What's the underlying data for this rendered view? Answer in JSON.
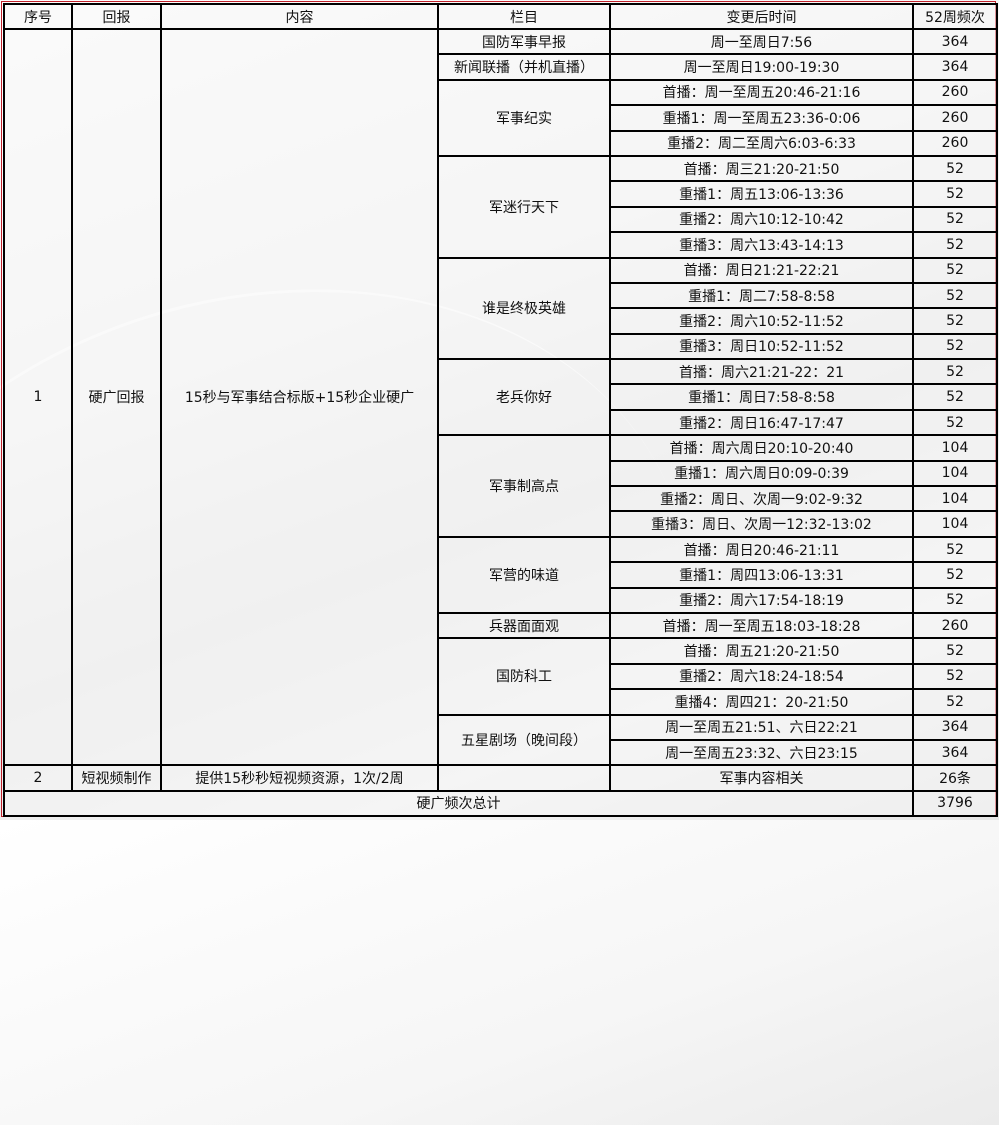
{
  "headers": [
    "序号",
    "回报",
    "内容",
    "栏目",
    "变更后时间",
    "52周频次"
  ],
  "section1": {
    "index": "1",
    "return": "硬广回报",
    "content": "15秒与军事结合标版+15秒企业硬广",
    "programs": [
      {
        "name": "国防军事早报",
        "slots": [
          {
            "time": "周一至周日7:56",
            "freq": "364"
          }
        ]
      },
      {
        "name": "新闻联播（并机直播）",
        "slots": [
          {
            "time": "周一至周日19:00-19:30",
            "freq": "364"
          }
        ]
      },
      {
        "name": "军事纪实",
        "slots": [
          {
            "time": "首播：周一至周五20:46-21:16",
            "freq": "260"
          },
          {
            "time": "重播1：周一至周五23:36-0:06",
            "freq": "260"
          },
          {
            "time": "重播2：周二至周六6:03-6:33",
            "freq": "260"
          }
        ]
      },
      {
        "name": "军迷行天下",
        "slots": [
          {
            "time": "首播：周三21:20-21:50",
            "freq": "52"
          },
          {
            "time": "重播1：周五13:06-13:36",
            "freq": "52"
          },
          {
            "time": "重播2：周六10:12-10:42",
            "freq": "52"
          },
          {
            "time": "重播3：周六13:43-14:13",
            "freq": "52"
          }
        ]
      },
      {
        "name": "谁是终极英雄",
        "slots": [
          {
            "time": "首播：周日21:21-22:21",
            "freq": "52"
          },
          {
            "time": "重播1：周二7:58-8:58",
            "freq": "52"
          },
          {
            "time": "重播2：周六10:52-11:52",
            "freq": "52"
          },
          {
            "time": "重播3：周日10:52-11:52",
            "freq": "52"
          }
        ]
      },
      {
        "name": "老兵你好",
        "slots": [
          {
            "time": "首播：周六21:21-22：21",
            "freq": "52"
          },
          {
            "time": "重播1：周日7:58-8:58",
            "freq": "52"
          },
          {
            "time": "重播2：周日16:47-17:47",
            "freq": "52"
          }
        ]
      },
      {
        "name": "军事制高点",
        "slots": [
          {
            "time": "首播：周六周日20:10-20:40",
            "freq": "104"
          },
          {
            "time": "重播1：周六周日0:09-0:39",
            "freq": "104"
          },
          {
            "time": "重播2：周日、次周一9:02-9:32",
            "freq": "104"
          },
          {
            "time": "重播3：周日、次周一12:32-13:02",
            "freq": "104"
          }
        ]
      },
      {
        "name": "军营的味道",
        "slots": [
          {
            "time": "首播：周日20:46-21:11",
            "freq": "52"
          },
          {
            "time": "重播1：周四13:06-13:31",
            "freq": "52"
          },
          {
            "time": "重播2：周六17:54-18:19",
            "freq": "52"
          }
        ]
      },
      {
        "name": "兵器面面观",
        "slots": [
          {
            "time": "首播：周一至周五18:03-18:28",
            "freq": "260"
          }
        ]
      },
      {
        "name": "国防科工",
        "slots": [
          {
            "time": "首播：周五21:20-21:50",
            "freq": "52"
          },
          {
            "time": "重播2：周六18:24-18:54",
            "freq": "52"
          },
          {
            "time": "重播4：周四21：20-21:50",
            "freq": "52"
          }
        ]
      },
      {
        "name": "五星剧场（晚间段）",
        "slots": [
          {
            "time": "周一至周五21:51、六日22:21",
            "freq": "364"
          },
          {
            "time": "周一至周五23:32、六日23:15",
            "freq": "364"
          }
        ]
      }
    ]
  },
  "section2": {
    "index": "2",
    "return": "短视频制作",
    "content": "提供15秒秒短视频资源，1次/2周",
    "program": "",
    "time": "军事内容相关",
    "freq": "26条"
  },
  "total": {
    "label": "硬广频次总计",
    "value": "3796"
  }
}
